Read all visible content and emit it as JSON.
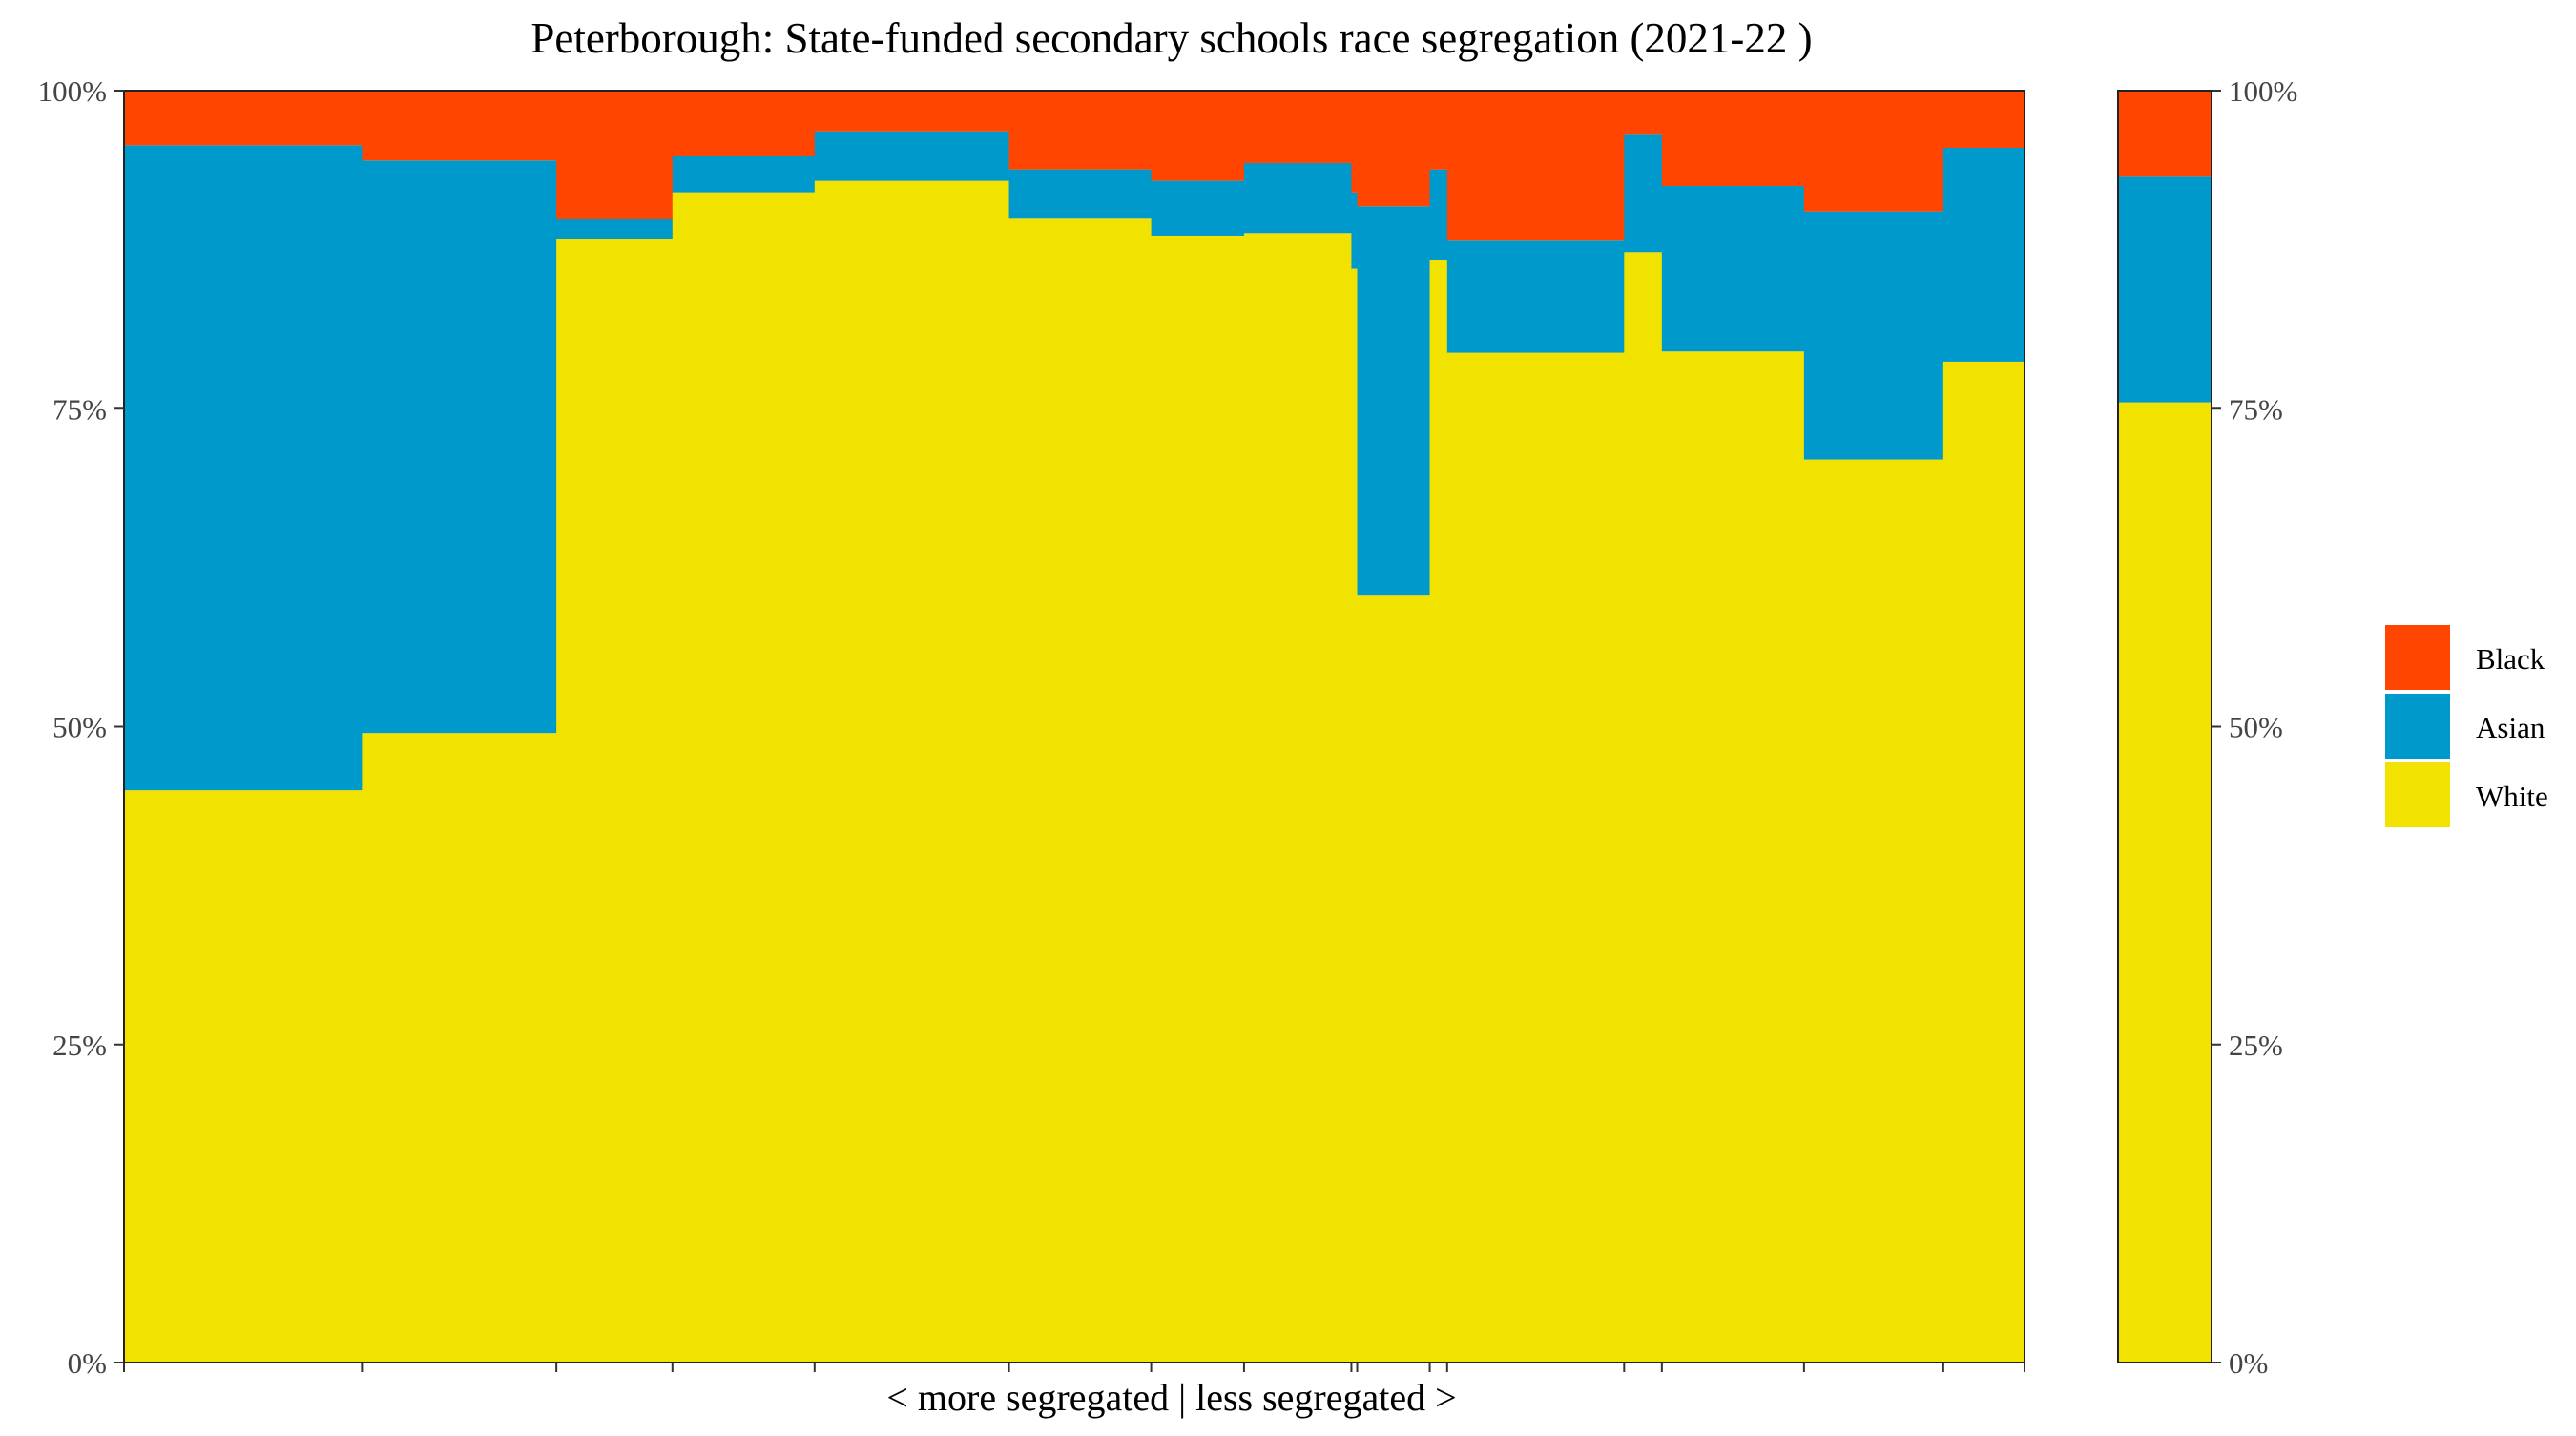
{
  "chart_data": {
    "type": "bar",
    "title": "Peterborough: State-funded secondary schools race segregation (2021-22 )",
    "xlabel": "< more segregated | less segregated >",
    "ylabel": "",
    "ylim": [
      0,
      100
    ],
    "y_ticks": [
      "0%",
      "25%",
      "50%",
      "75%",
      "100%"
    ],
    "colors": {
      "Black": "#FF4500",
      "Asian": "#0099CC",
      "White": "#F2E200"
    },
    "legend": {
      "position": "right",
      "entries": [
        "Black",
        "Asian",
        "White"
      ]
    },
    "grid": false,
    "variable_width": true,
    "schools": [
      {
        "width": 8.2,
        "White": 45.0,
        "Asian": 50.7,
        "Black": 4.3
      },
      {
        "width": 6.7,
        "White": 49.5,
        "Asian": 45.0,
        "Black": 5.5
      },
      {
        "width": 4.0,
        "White": 88.3,
        "Asian": 1.6,
        "Black": 10.1
      },
      {
        "width": 4.9,
        "White": 92.0,
        "Asian": 2.9,
        "Black": 5.1
      },
      {
        "width": 6.7,
        "White": 92.9,
        "Asian": 3.9,
        "Black": 3.2
      },
      {
        "width": 4.9,
        "White": 90.0,
        "Asian": 3.8,
        "Black": 6.2
      },
      {
        "width": 3.2,
        "White": 88.6,
        "Asian": 4.3,
        "Black": 7.1
      },
      {
        "width": 3.7,
        "White": 88.8,
        "Asian": 5.5,
        "Black": 5.7
      },
      {
        "width": 0.2,
        "White": 86.0,
        "Asian": 6.0,
        "Black": 8.0
      },
      {
        "width": 2.5,
        "White": 60.3,
        "Asian": 30.6,
        "Black": 9.1
      },
      {
        "width": 0.6,
        "White": 86.7,
        "Asian": 7.1,
        "Black": 6.2
      },
      {
        "width": 6.1,
        "White": 79.4,
        "Asian": 8.8,
        "Black": 11.8
      },
      {
        "width": 1.3,
        "White": 87.3,
        "Asian": 9.3,
        "Black": 3.4
      },
      {
        "width": 4.9,
        "White": 79.5,
        "Asian": 13.0,
        "Black": 7.5
      },
      {
        "width": 4.8,
        "White": 71.0,
        "Asian": 19.5,
        "Black": 9.5
      },
      {
        "width": 2.8,
        "White": 78.7,
        "Asian": 16.8,
        "Black": 4.5
      }
    ],
    "overall": {
      "White": 75.5,
      "Asian": 17.8,
      "Black": 6.7
    }
  }
}
